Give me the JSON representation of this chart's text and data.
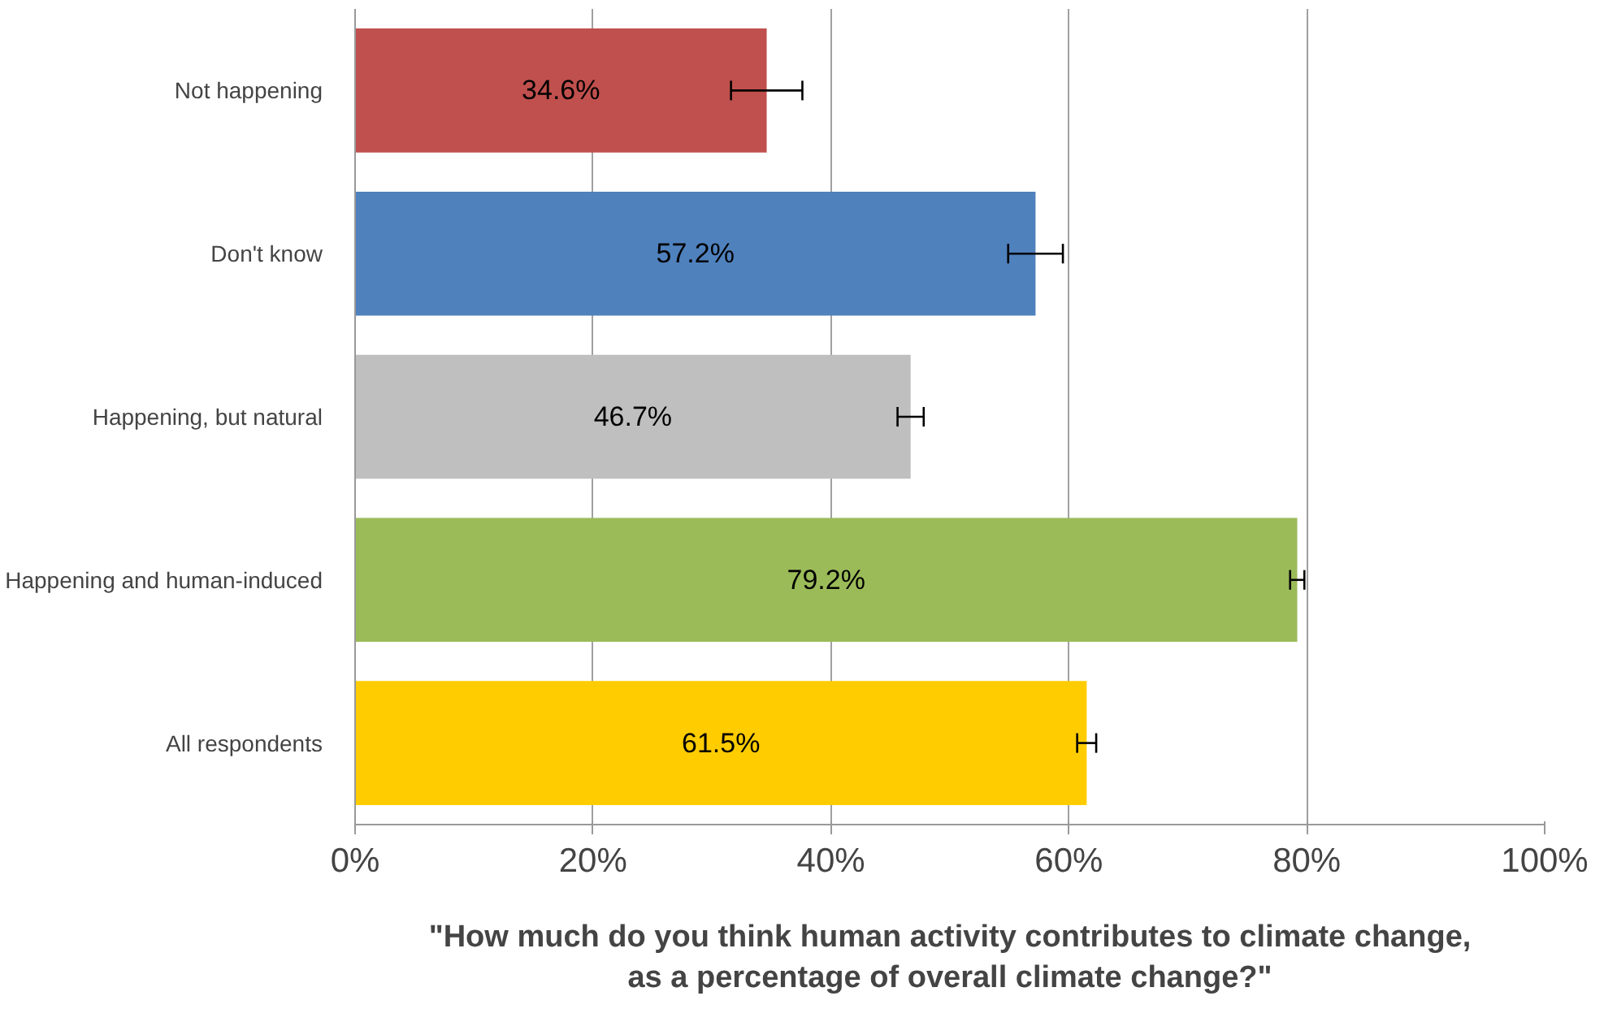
{
  "chart_data": {
    "type": "bar",
    "orientation": "horizontal",
    "xlabel": "\"How much do you think human activity contributes to climate change,\nas a percentage of overall climate change?\"",
    "categories": [
      "Not happening",
      "Don't know",
      "Happening, but natural",
      "Happening and human-induced",
      "All respondents"
    ],
    "values": [
      34.6,
      57.2,
      46.7,
      79.2,
      61.5
    ],
    "colors": [
      "#c0504d",
      "#4f81bd",
      "#bfbfbf",
      "#9bbb59",
      "#ffcc00"
    ],
    "errors": [
      3.0,
      2.3,
      1.1,
      0.6,
      0.8
    ],
    "value_labels": [
      "34.6%",
      "57.2%",
      "46.7%",
      "79.2%",
      "61.5%"
    ],
    "xlim": [
      0,
      100
    ],
    "xticks": [
      {
        "value": 0,
        "label": "0%"
      },
      {
        "value": 20,
        "label": "20%"
      },
      {
        "value": 40,
        "label": "40%"
      },
      {
        "value": 60,
        "label": "60%"
      },
      {
        "value": 80,
        "label": "80%"
      },
      {
        "value": 100,
        "label": "100%"
      }
    ],
    "grid": "x"
  }
}
